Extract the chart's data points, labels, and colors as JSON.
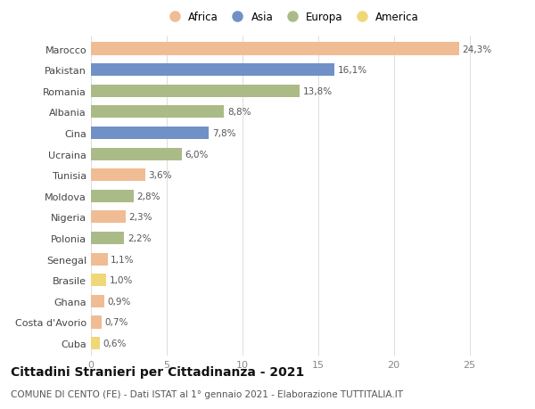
{
  "countries": [
    "Marocco",
    "Pakistan",
    "Romania",
    "Albania",
    "Cina",
    "Ucraina",
    "Tunisia",
    "Moldova",
    "Nigeria",
    "Polonia",
    "Senegal",
    "Brasile",
    "Ghana",
    "Costa d'Avorio",
    "Cuba"
  ],
  "values": [
    24.3,
    16.1,
    13.8,
    8.8,
    7.8,
    6.0,
    3.6,
    2.8,
    2.3,
    2.2,
    1.1,
    1.0,
    0.9,
    0.7,
    0.6
  ],
  "labels": [
    "24,3%",
    "16,1%",
    "13,8%",
    "8,8%",
    "7,8%",
    "6,0%",
    "3,6%",
    "2,8%",
    "2,3%",
    "2,2%",
    "1,1%",
    "1,0%",
    "0,9%",
    "0,7%",
    "0,6%"
  ],
  "continents": [
    "Africa",
    "Asia",
    "Europa",
    "Europa",
    "Asia",
    "Europa",
    "Africa",
    "Europa",
    "Africa",
    "Europa",
    "Africa",
    "America",
    "Africa",
    "Africa",
    "America"
  ],
  "colors": {
    "Africa": "#F0BC94",
    "Asia": "#7090C8",
    "Europa": "#AABB88",
    "America": "#F0D878"
  },
  "legend_order": [
    "Africa",
    "Asia",
    "Europa",
    "America"
  ],
  "title": "Cittadini Stranieri per Cittadinanza - 2021",
  "subtitle": "COMUNE DI CENTO (FE) - Dati ISTAT al 1° gennaio 2021 - Elaborazione TUTTITALIA.IT",
  "xlim": [
    0,
    26.5
  ],
  "xticks": [
    0,
    5,
    10,
    15,
    20,
    25
  ],
  "bg_color": "#ffffff",
  "grid_color": "#dddddd",
  "bar_height": 0.6,
  "title_fontsize": 10,
  "subtitle_fontsize": 7.5,
  "label_fontsize": 7.5,
  "ytick_fontsize": 8,
  "xtick_fontsize": 8,
  "legend_fontsize": 8.5
}
